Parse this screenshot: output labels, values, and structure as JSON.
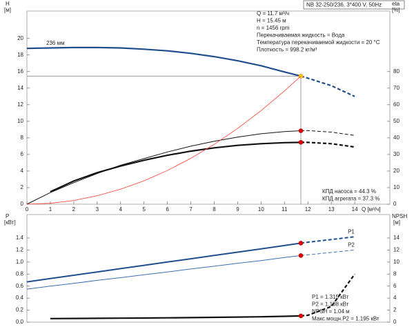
{
  "chart_data": [
    {
      "type": "line",
      "title": "NB 32-250/236, 3*400 V, 50Hz",
      "y_label": "H",
      "y_unit": "[м]",
      "y2_label": "eta",
      "y2_unit": "[%]",
      "x_label": "Q [м³/ч]",
      "x": [
        0,
        1,
        2,
        3,
        4,
        5,
        6,
        7,
        8,
        9,
        10,
        11,
        11.7,
        12,
        13,
        14
      ],
      "xlim": [
        0,
        15.5
      ],
      "xticks": [
        0,
        1,
        2,
        3,
        4,
        5,
        6,
        7,
        8,
        9,
        10,
        11,
        12,
        13,
        14
      ],
      "ylim": [
        0,
        23.3
      ],
      "yticks": [
        0,
        2,
        4,
        6,
        8,
        10,
        12,
        14,
        16,
        18,
        20
      ],
      "y2lim": [
        0,
        116.5
      ],
      "y2ticks": [
        0,
        10,
        20,
        30,
        40,
        50,
        60,
        70,
        80
      ],
      "operating_x": 11.7,
      "series": [
        {
          "name": "236 мм",
          "color": "#1f4e8c",
          "width": 2.2,
          "marker_color": "#ffd200",
          "values": [
            18.8,
            18.85,
            18.9,
            18.9,
            18.85,
            18.7,
            18.5,
            18.2,
            17.8,
            17.3,
            16.7,
            15.95,
            15.45,
            15.2,
            14.3,
            13.0
          ]
        },
        {
          "color": "#111111",
          "width": 1,
          "axis": "y2",
          "marker_color": "#e00000",
          "values": [
            0,
            7,
            13,
            18.5,
            23.5,
            27.5,
            31.5,
            35,
            38,
            40.5,
            42.5,
            43.8,
            44.3,
            44.4,
            43.5,
            41.5
          ]
        },
        {
          "color": "#111111",
          "width": 2.2,
          "axis": "y2",
          "marker_color": "#e00000",
          "values": [
            null,
            7.5,
            14,
            19,
            23,
            26.5,
            29.5,
            32,
            34,
            35.5,
            36.5,
            37.1,
            37.3,
            37.3,
            36.5,
            34.5
          ]
        },
        {
          "color": "#ff3b30",
          "width": 0.8,
          "values": [
            0,
            0.11,
            0.45,
            1.02,
            1.81,
            2.82,
            4.06,
            5.53,
            7.22,
            9.14,
            11.29,
            13.66,
            15.45,
            null,
            null,
            null
          ]
        }
      ],
      "annotations": [
        "Q = 11.7 м³/ч",
        "H = 15.45 м",
        "n = 1456 rpm",
        "Перекачиваемая жидкость = Вода",
        "Температура перекачиваемой жидкости = 20 °C",
        "Плотность = 998.2 кг/м³"
      ],
      "efficiency_labels": [
        "КПД насоса = 44.3 %",
        "КПД агрегата = 37.3 %"
      ]
    },
    {
      "type": "line",
      "y_label": "P",
      "y_unit": "[кВт]",
      "y2_label": "NPSH",
      "y2_unit": "[м]",
      "x": [
        0,
        1,
        2,
        3,
        4,
        5,
        6,
        7,
        8,
        9,
        10,
        11,
        11.7,
        12,
        13,
        14
      ],
      "xlim": [
        0,
        15.5
      ],
      "ylim": [
        0,
        1.79
      ],
      "yticks": [
        {
          "value": 0,
          "label": "0.0"
        },
        0.2,
        0.4,
        0.6,
        0.8,
        {
          "value": 1,
          "label": "1.0"
        },
        1.2,
        1.4
      ],
      "y2lim": [
        0,
        17.9
      ],
      "y2ticks": [
        0,
        2,
        4,
        6,
        8,
        10,
        12,
        14
      ],
      "operating_x": 11.7,
      "series": [
        {
          "name": "P1",
          "color": "#1f4e8c",
          "width": 2,
          "marker_color": "#e00000",
          "values": [
            0.67,
            0.725,
            0.78,
            0.835,
            0.89,
            0.945,
            1.0,
            1.055,
            1.11,
            1.165,
            1.22,
            1.275,
            1.315,
            1.33,
            1.375,
            1.42
          ]
        },
        {
          "name": "P2",
          "color": "#3a6fb0",
          "width": 1,
          "marker_color": "#e00000",
          "values": [
            0.55,
            0.6,
            0.645,
            0.695,
            0.74,
            0.79,
            0.835,
            0.885,
            0.93,
            0.98,
            1.025,
            1.075,
            1.108,
            1.12,
            1.16,
            1.2
          ]
        },
        {
          "color": "#111111",
          "width": 2.2,
          "axis": "y2",
          "marker_color": "#e00000",
          "values": [
            null,
            0.6,
            0.62,
            0.64,
            0.66,
            0.69,
            0.72,
            0.76,
            0.8,
            0.85,
            0.9,
            0.97,
            1.04,
            1.15,
            2.6,
            8
          ]
        }
      ],
      "annotations": [
        "P1 = 1.315 кВт",
        "P2 = 1.108 кВт",
        "NPSH = 1.04 м",
        "Макс.мощн.P2 = 1.195 кВт"
      ]
    }
  ]
}
